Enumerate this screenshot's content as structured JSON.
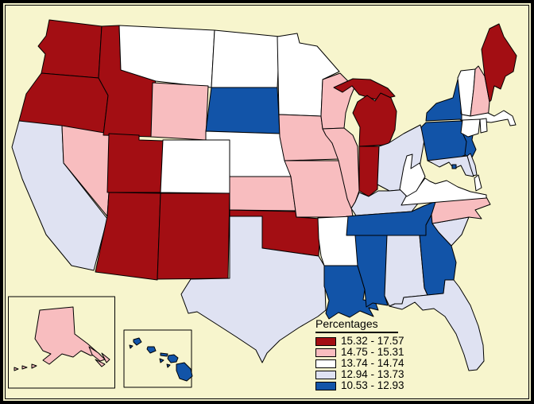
{
  "window": {
    "background": "#F7F5CD",
    "frame_color": "#000000"
  },
  "legend": {
    "title": "Percentages",
    "position": "bottom-right",
    "items": [
      {
        "label": "15.32 - 17.57",
        "color": "#A30E13"
      },
      {
        "label": "14.75 - 15.31",
        "color": "#F8BDBF"
      },
      {
        "label": "13.74 - 14.74",
        "color": "#FFFFFF"
      },
      {
        "label": "12.94 - 13.73",
        "color": "#DFE2F2"
      },
      {
        "label": "10.53 - 12.93",
        "color": "#1254A8"
      }
    ]
  },
  "chart_data": {
    "type": "heatmap",
    "subtype": "choropleth-us-states",
    "title": "Percentages",
    "unit": "percent",
    "classes": [
      "15.32 - 17.57",
      "14.75 - 15.31",
      "13.74 - 14.74",
      "12.94 - 13.73",
      "10.53 - 12.93"
    ],
    "insets": [
      "Alaska",
      "Hawaii"
    ],
    "states": [
      {
        "id": "WA",
        "name": "Washington",
        "class": 1,
        "range": "15.32 - 17.57"
      },
      {
        "id": "OR",
        "name": "Oregon",
        "class": 1,
        "range": "15.32 - 17.57"
      },
      {
        "id": "ID",
        "name": "Idaho",
        "class": 1,
        "range": "15.32 - 17.57"
      },
      {
        "id": "UT",
        "name": "Utah",
        "class": 1,
        "range": "15.32 - 17.57"
      },
      {
        "id": "AZ",
        "name": "Arizona",
        "class": 1,
        "range": "15.32 - 17.57"
      },
      {
        "id": "NM",
        "name": "New Mexico",
        "class": 1,
        "range": "15.32 - 17.57"
      },
      {
        "id": "OK",
        "name": "Oklahoma",
        "class": 1,
        "range": "15.32 - 17.57"
      },
      {
        "id": "MI",
        "name": "Michigan",
        "class": 1,
        "range": "15.32 - 17.57"
      },
      {
        "id": "IN",
        "name": "Indiana",
        "class": 1,
        "range": "15.32 - 17.57"
      },
      {
        "id": "ME",
        "name": "Maine",
        "class": 1,
        "range": "15.32 - 17.57"
      },
      {
        "id": "NV",
        "name": "Nevada",
        "class": 2,
        "range": "14.75 - 15.31"
      },
      {
        "id": "WY",
        "name": "Wyoming",
        "class": 2,
        "range": "14.75 - 15.31"
      },
      {
        "id": "KS",
        "name": "Kansas",
        "class": 2,
        "range": "14.75 - 15.31"
      },
      {
        "id": "IA",
        "name": "Iowa",
        "class": 2,
        "range": "14.75 - 15.31"
      },
      {
        "id": "MO",
        "name": "Missouri",
        "class": 2,
        "range": "14.75 - 15.31"
      },
      {
        "id": "IL",
        "name": "Illinois",
        "class": 2,
        "range": "14.75 - 15.31"
      },
      {
        "id": "WI",
        "name": "Wisconsin",
        "class": 2,
        "range": "14.75 - 15.31"
      },
      {
        "id": "NC",
        "name": "North Carolina",
        "class": 2,
        "range": "14.75 - 15.31"
      },
      {
        "id": "NH",
        "name": "New Hampshire",
        "class": 2,
        "range": "14.75 - 15.31"
      },
      {
        "id": "AK",
        "name": "Alaska",
        "class": 2,
        "range": "14.75 - 15.31"
      },
      {
        "id": "MT",
        "name": "Montana",
        "class": 3,
        "range": "13.74 - 14.74"
      },
      {
        "id": "ND",
        "name": "North Dakota",
        "class": 3,
        "range": "13.74 - 14.74"
      },
      {
        "id": "NE",
        "name": "Nebraska",
        "class": 3,
        "range": "13.74 - 14.74"
      },
      {
        "id": "CO",
        "name": "Colorado",
        "class": 3,
        "range": "13.74 - 14.74"
      },
      {
        "id": "MN",
        "name": "Minnesota",
        "class": 3,
        "range": "13.74 - 14.74"
      },
      {
        "id": "AR",
        "name": "Arkansas",
        "class": 3,
        "range": "13.74 - 14.74"
      },
      {
        "id": "VA",
        "name": "Virginia",
        "class": 3,
        "range": "13.74 - 14.74"
      },
      {
        "id": "WV",
        "name": "West Virginia",
        "class": 3,
        "range": "13.74 - 14.74"
      },
      {
        "id": "VT",
        "name": "Vermont",
        "class": 3,
        "range": "13.74 - 14.74"
      },
      {
        "id": "MA",
        "name": "Massachusetts",
        "class": 3,
        "range": "13.74 - 14.74"
      },
      {
        "id": "CT",
        "name": "Connecticut",
        "class": 3,
        "range": "13.74 - 14.74"
      },
      {
        "id": "RI",
        "name": "Rhode Island",
        "class": 3,
        "range": "13.74 - 14.74"
      },
      {
        "id": "CA",
        "name": "California",
        "class": 4,
        "range": "12.94 - 13.73"
      },
      {
        "id": "TX",
        "name": "Texas",
        "class": 4,
        "range": "12.94 - 13.73"
      },
      {
        "id": "OH",
        "name": "Ohio",
        "class": 4,
        "range": "12.94 - 13.73"
      },
      {
        "id": "KY",
        "name": "Kentucky",
        "class": 4,
        "range": "12.94 - 13.73"
      },
      {
        "id": "AL",
        "name": "Alabama",
        "class": 4,
        "range": "12.94 - 13.73"
      },
      {
        "id": "SC",
        "name": "South Carolina",
        "class": 4,
        "range": "12.94 - 13.73"
      },
      {
        "id": "FL",
        "name": "Florida",
        "class": 4,
        "range": "12.94 - 13.73"
      },
      {
        "id": "MD",
        "name": "Maryland",
        "class": 4,
        "range": "12.94 - 13.73"
      },
      {
        "id": "DE",
        "name": "Delaware",
        "class": 4,
        "range": "12.94 - 13.73"
      },
      {
        "id": "SD",
        "name": "South Dakota",
        "class": 5,
        "range": "10.53 - 12.93"
      },
      {
        "id": "NY",
        "name": "New York",
        "class": 5,
        "range": "10.53 - 12.93"
      },
      {
        "id": "PA",
        "name": "Pennsylvania",
        "class": 5,
        "range": "10.53 - 12.93"
      },
      {
        "id": "NJ",
        "name": "New Jersey",
        "class": 5,
        "range": "10.53 - 12.93"
      },
      {
        "id": "TN",
        "name": "Tennessee",
        "class": 5,
        "range": "10.53 - 12.93"
      },
      {
        "id": "MS",
        "name": "Mississippi",
        "class": 5,
        "range": "10.53 - 12.93"
      },
      {
        "id": "LA",
        "name": "Louisiana",
        "class": 5,
        "range": "10.53 - 12.93"
      },
      {
        "id": "GA",
        "name": "Georgia",
        "class": 5,
        "range": "10.53 - 12.93"
      },
      {
        "id": "HI",
        "name": "Hawaii",
        "class": 5,
        "range": "10.53 - 12.93"
      },
      {
        "id": "DC",
        "name": "District of Columbia",
        "class": 5,
        "range": "10.53 - 12.93"
      }
    ]
  }
}
